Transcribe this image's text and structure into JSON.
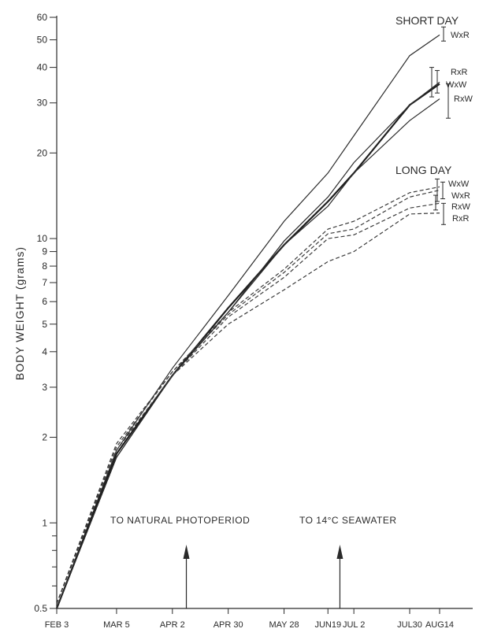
{
  "chart_data": {
    "type": "line",
    "ylabel": "BODY WEIGHT  (grams)",
    "yscale": "log",
    "ylim": [
      0.5,
      60
    ],
    "yticks_labeled": [
      "0.5",
      "1",
      "2",
      "3",
      "4",
      "5",
      "6",
      "7",
      "8",
      "9",
      "10",
      "20",
      "30",
      "40",
      "50",
      "60"
    ],
    "yticks_values": [
      0.5,
      1,
      2,
      3,
      4,
      5,
      6,
      7,
      8,
      9,
      10,
      20,
      30,
      40,
      50,
      60
    ],
    "x_dates": [
      "1977-02-03",
      "1977-03-05",
      "1977-04-02",
      "1977-04-30",
      "1977-05-28",
      "1977-06-19",
      "1977-07-02",
      "1977-07-30",
      "1977-08-14"
    ],
    "xtick_labels": [
      "FEB 3",
      "MAR 5",
      "APR 2",
      "APR 30",
      "MAY 28",
      "JUN19",
      "JUL 2",
      "JUL30",
      "AUG14"
    ],
    "groups": [
      {
        "name": "SHORT DAY",
        "line_style": "solid"
      },
      {
        "name": "LONG DAY",
        "line_style": "dashed"
      }
    ],
    "series": [
      {
        "name": "WxR",
        "group": "SHORT DAY",
        "style": "solid",
        "x": [
          "1977-02-03",
          "1977-03-05",
          "1977-04-02",
          "1977-04-30",
          "1977-05-28",
          "1977-06-19",
          "1977-07-02",
          "1977-07-30",
          "1977-08-14"
        ],
        "y": [
          0.5,
          1.8,
          3.5,
          6.3,
          11.5,
          17,
          23,
          44,
          52
        ]
      },
      {
        "name": "RxR",
        "group": "SHORT DAY",
        "style": "bold",
        "x": [
          "1977-02-03",
          "1977-03-05",
          "1977-04-02",
          "1977-04-30",
          "1977-05-28",
          "1977-06-19",
          "1977-07-02",
          "1977-07-30",
          "1977-08-14"
        ],
        "y": [
          0.5,
          1.75,
          3.3,
          5.7,
          9.5,
          13.5,
          17,
          29.5,
          35
        ]
      },
      {
        "name": "WxW",
        "group": "SHORT DAY",
        "style": "solid",
        "x": [
          "1977-02-03",
          "1977-03-05",
          "1977-04-02",
          "1977-04-30",
          "1977-05-28",
          "1977-06-19",
          "1977-07-02",
          "1977-07-30",
          "1977-08-14"
        ],
        "y": [
          0.5,
          1.7,
          3.3,
          5.5,
          9.8,
          14,
          18.5,
          29.5,
          35.5
        ]
      },
      {
        "name": "RxW",
        "group": "SHORT DAY",
        "style": "solid",
        "x": [
          "1977-02-03",
          "1977-03-05",
          "1977-04-02",
          "1977-04-30",
          "1977-05-28",
          "1977-06-19",
          "1977-07-02",
          "1977-07-30",
          "1977-08-14"
        ],
        "y": [
          0.5,
          1.7,
          3.3,
          5.5,
          9.5,
          13,
          17,
          26,
          31
        ]
      },
      {
        "name": "WxW",
        "group": "LONG DAY",
        "style": "dashed",
        "x": [
          "1977-02-03",
          "1977-03-05",
          "1977-04-02",
          "1977-04-30",
          "1977-05-28",
          "1977-06-19",
          "1977-07-02",
          "1977-07-30",
          "1977-08-14"
        ],
        "y": [
          0.52,
          1.9,
          3.4,
          5.5,
          7.8,
          10.8,
          11.5,
          14.5,
          15.2
        ]
      },
      {
        "name": "WxR",
        "group": "LONG DAY",
        "style": "dashed",
        "x": [
          "1977-02-03",
          "1977-03-05",
          "1977-04-02",
          "1977-04-30",
          "1977-05-28",
          "1977-06-19",
          "1977-07-02",
          "1977-07-30",
          "1977-08-14"
        ],
        "y": [
          0.52,
          1.85,
          3.4,
          5.4,
          7.6,
          10.4,
          10.8,
          14,
          14.8
        ]
      },
      {
        "name": "RxW",
        "group": "LONG DAY",
        "style": "dashed",
        "x": [
          "1977-02-03",
          "1977-03-05",
          "1977-04-02",
          "1977-04-30",
          "1977-05-28",
          "1977-06-19",
          "1977-07-02",
          "1977-07-30",
          "1977-08-14"
        ],
        "y": [
          0.52,
          1.8,
          3.3,
          5.3,
          7.3,
          10.0,
          10.3,
          12.8,
          13.3
        ]
      },
      {
        "name": "RxR",
        "group": "LONG DAY",
        "style": "dashed",
        "x": [
          "1977-02-03",
          "1977-03-05",
          "1977-04-02",
          "1977-04-30",
          "1977-05-28",
          "1977-06-19",
          "1977-07-02",
          "1977-07-30",
          "1977-08-14"
        ],
        "y": [
          0.52,
          1.8,
          3.3,
          5.0,
          6.6,
          8.3,
          9.0,
          12.2,
          12.3
        ]
      }
    ],
    "error_bars_at": "1977-08-14",
    "error_bars": [
      {
        "series": "WxR",
        "group": "SHORT DAY",
        "low": 49.5,
        "high": 55.5
      },
      {
        "series": "RxR",
        "group": "SHORT DAY",
        "low": 31.5,
        "high": 40
      },
      {
        "series": "WxW",
        "group": "SHORT DAY",
        "low": 32.5,
        "high": 39
      },
      {
        "series": "RxW",
        "group": "SHORT DAY",
        "low": 26.5,
        "high": 35
      },
      {
        "series": "WxW",
        "group": "LONG DAY",
        "low": 13.5,
        "high": 16.2
      },
      {
        "series": "WxR",
        "group": "LONG DAY",
        "low": 13.8,
        "high": 15.8
      },
      {
        "series": "RxW",
        "group": "LONG DAY",
        "low": 12.6,
        "high": 14.2
      },
      {
        "series": "RxR",
        "group": "LONG DAY",
        "low": 11.2,
        "high": 13.3
      }
    ],
    "annotations": [
      {
        "text": "TO NATURAL PHOTOPERIOD",
        "arrow_at": "1977-04-09"
      },
      {
        "text": "TO 14°C SEAWATER",
        "arrow_at": "1977-06-25"
      }
    ],
    "grid": false
  }
}
